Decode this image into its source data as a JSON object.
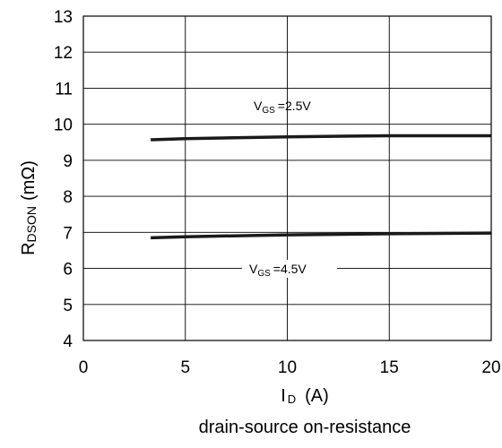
{
  "chart_data": {
    "type": "line",
    "title": "",
    "caption": "drain-source on-resistance",
    "xlabel": {
      "main": "I",
      "sub": "D",
      "unit": "(A)"
    },
    "ylabel": {
      "main": "R",
      "sub": "DSON",
      "unit": "(mΩ)"
    },
    "xlim": [
      0,
      20
    ],
    "ylim": [
      4,
      13
    ],
    "xticks": [
      0,
      5,
      10,
      15,
      20
    ],
    "yticks": [
      4,
      5,
      6,
      7,
      8,
      9,
      10,
      11,
      12,
      13
    ],
    "grid": true,
    "series": [
      {
        "label": {
          "main": "V",
          "sub": "GS",
          "rest": "=2.5V"
        },
        "color": "#1a1a1a",
        "x": [
          3.3,
          5,
          10,
          15,
          20
        ],
        "y": [
          9.57,
          9.6,
          9.65,
          9.68,
          9.68
        ]
      },
      {
        "label": {
          "main": "V",
          "sub": "GS",
          "rest": "=4.5V"
        },
        "color": "#1a1a1a",
        "x": [
          3.3,
          5,
          10,
          15,
          20
        ],
        "y": [
          6.85,
          6.88,
          6.93,
          6.96,
          6.98
        ]
      }
    ]
  }
}
